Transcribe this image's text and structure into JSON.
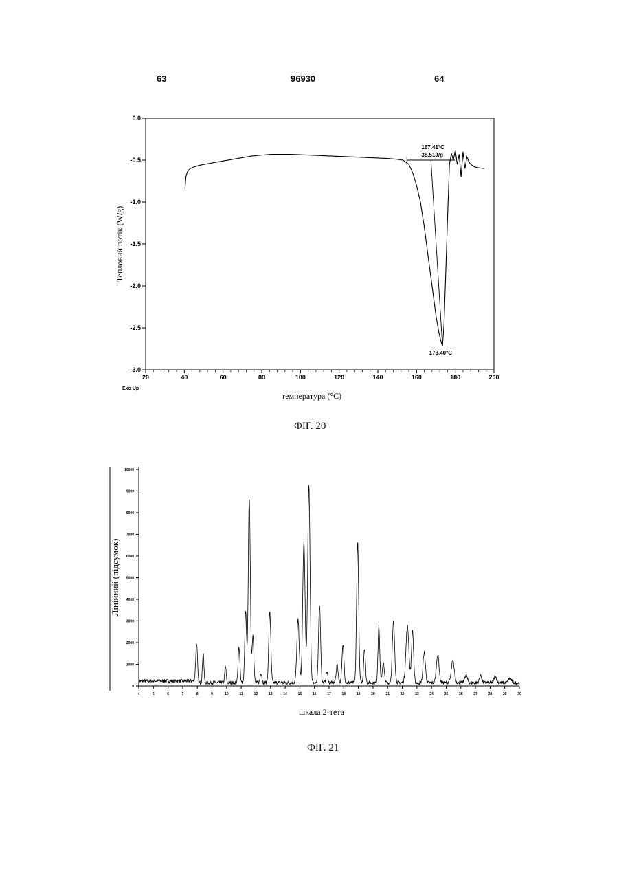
{
  "header": {
    "left_page": "63",
    "patent_number": "96930",
    "right_page": "64"
  },
  "figures": {
    "fig20_caption": "ФІГ. 20",
    "fig21_caption": "ФІГ. 21"
  },
  "chart_data": [
    {
      "type": "line",
      "xlabel": "температура (°C)",
      "ylabel": "Тепловий потік (W/g)",
      "corner_label": "Exo Up",
      "xlim": [
        20,
        200
      ],
      "ylim": [
        -3.0,
        0.0
      ],
      "x_ticks": [
        "20",
        "40",
        "60",
        "80",
        "100",
        "120",
        "140",
        "160",
        "180",
        "200"
      ],
      "y_ticks": [
        "0.0",
        "-0.5",
        "-1.0",
        "-1.5",
        "-2.0",
        "-2.5",
        "-3.0"
      ],
      "annotations": {
        "onset_temp": "167.41°C",
        "enthalpy": "38.51J/g",
        "peak_temp": "173.40°C"
      },
      "series": [
        {
          "x": [
            40.3,
            40.8,
            41.5,
            43,
            45,
            48,
            55,
            65,
            75,
            85,
            95,
            105,
            115,
            125,
            135,
            145,
            150,
            153,
            156,
            158,
            160,
            162,
            164,
            166,
            168,
            170,
            171.5,
            172.5,
            173.4,
            174.2,
            175,
            176,
            177,
            178,
            179,
            180,
            181,
            182,
            183,
            184,
            185,
            186,
            187,
            188,
            190,
            192,
            195
          ],
          "y": [
            -0.84,
            -0.7,
            -0.64,
            -0.6,
            -0.58,
            -0.56,
            -0.53,
            -0.49,
            -0.45,
            -0.43,
            -0.43,
            -0.44,
            -0.45,
            -0.46,
            -0.47,
            -0.48,
            -0.49,
            -0.5,
            -0.55,
            -0.65,
            -0.8,
            -1.0,
            -1.3,
            -1.65,
            -2.0,
            -2.35,
            -2.55,
            -2.65,
            -2.72,
            -2.45,
            -1.9,
            -1.2,
            -0.55,
            -0.42,
            -0.5,
            -0.38,
            -0.55,
            -0.43,
            -0.7,
            -0.4,
            -0.6,
            -0.46,
            -0.52,
            -0.55,
            -0.58,
            -0.59,
            -0.6
          ]
        }
      ]
    },
    {
      "type": "line",
      "xlabel": "шкала 2-тета",
      "ylabel": "Лінійний (підсумок)",
      "xlim": [
        4,
        30
      ],
      "ylim": [
        0,
        10000
      ],
      "x_ticks": [
        "4",
        "5",
        "6",
        "7",
        "8",
        "9",
        "10",
        "11",
        "12",
        "13",
        "14",
        "15",
        "16",
        "17",
        "18",
        "19",
        "20",
        "21",
        "22",
        "23",
        "24",
        "25",
        "26",
        "27",
        "28",
        "29",
        "30"
      ],
      "y_ticks": [
        "0",
        "1000",
        "2000",
        "3000",
        "4000",
        "5000",
        "6000",
        "7000",
        "8000",
        "9000",
        "10000"
      ],
      "series": [
        {
          "peaks": [
            {
              "x": 7.95,
              "h": 1750,
              "w": 0.06
            },
            {
              "x": 8.4,
              "h": 1400,
              "w": 0.05
            },
            {
              "x": 9.92,
              "h": 750,
              "w": 0.05
            },
            {
              "x": 10.85,
              "h": 1650,
              "w": 0.06
            },
            {
              "x": 11.3,
              "h": 3300,
              "w": 0.06
            },
            {
              "x": 11.55,
              "h": 8600,
              "w": 0.07
            },
            {
              "x": 11.8,
              "h": 2200,
              "w": 0.06
            },
            {
              "x": 12.35,
              "h": 450,
              "w": 0.06
            },
            {
              "x": 12.95,
              "h": 3300,
              "w": 0.07
            },
            {
              "x": 14.88,
              "h": 2900,
              "w": 0.08
            },
            {
              "x": 15.28,
              "h": 6500,
              "w": 0.08
            },
            {
              "x": 15.62,
              "h": 9100,
              "w": 0.08
            },
            {
              "x": 16.35,
              "h": 3600,
              "w": 0.07
            },
            {
              "x": 16.85,
              "h": 500,
              "w": 0.06
            },
            {
              "x": 17.55,
              "h": 800,
              "w": 0.07
            },
            {
              "x": 17.95,
              "h": 1700,
              "w": 0.07
            },
            {
              "x": 18.95,
              "h": 6500,
              "w": 0.07
            },
            {
              "x": 19.42,
              "h": 1600,
              "w": 0.06
            },
            {
              "x": 20.4,
              "h": 2600,
              "w": 0.06
            },
            {
              "x": 20.7,
              "h": 900,
              "w": 0.07
            },
            {
              "x": 21.4,
              "h": 2800,
              "w": 0.08
            },
            {
              "x": 22.35,
              "h": 2600,
              "w": 0.1
            },
            {
              "x": 22.7,
              "h": 2400,
              "w": 0.07
            },
            {
              "x": 23.5,
              "h": 1400,
              "w": 0.08
            },
            {
              "x": 24.42,
              "h": 1300,
              "w": 0.09
            },
            {
              "x": 25.45,
              "h": 1000,
              "w": 0.1
            },
            {
              "x": 26.35,
              "h": 350,
              "w": 0.09
            },
            {
              "x": 27.35,
              "h": 320,
              "w": 0.08
            },
            {
              "x": 28.35,
              "h": 300,
              "w": 0.09
            },
            {
              "x": 29.35,
              "h": 200,
              "w": 0.1
            }
          ],
          "baseline": 150
        }
      ]
    }
  ]
}
